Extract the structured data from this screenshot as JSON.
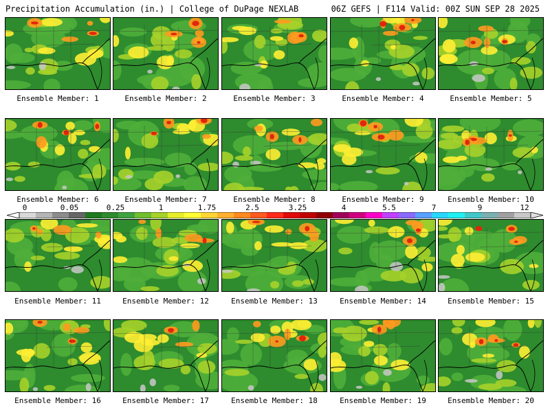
{
  "header": {
    "left": "Precipitation Accumulation (in.) | College of DuPage NEXLAB",
    "right": "06Z GEFS | F114 Valid: 00Z SUN SEP 28 2025"
  },
  "panels": [
    {
      "label": "Ensemble Member: 1"
    },
    {
      "label": "Ensemble Member: 2"
    },
    {
      "label": "Ensemble Member: 3"
    },
    {
      "label": "Ensemble Member: 4"
    },
    {
      "label": "Ensemble Member: 5"
    },
    {
      "label": "Ensemble Member: 6"
    },
    {
      "label": "Ensemble Member: 7"
    },
    {
      "label": "Ensemble Member: 8"
    },
    {
      "label": "Ensemble Member: 9"
    },
    {
      "label": "Ensemble Member: 10"
    },
    {
      "label": "Ensemble Member: 11"
    },
    {
      "label": "Ensemble Member: 12"
    },
    {
      "label": "Ensemble Member: 13"
    },
    {
      "label": "Ensemble Member: 14"
    },
    {
      "label": "Ensemble Member: 15"
    },
    {
      "label": "Ensemble Member: 16"
    },
    {
      "label": "Ensemble Member: 17"
    },
    {
      "label": "Ensemble Member: 18"
    },
    {
      "label": "Ensemble Member: 19"
    },
    {
      "label": "Ensemble Member: 20"
    }
  ],
  "colorbar": {
    "ticks": [
      "0",
      "0.05",
      "0.25",
      "1",
      "1.75",
      "2.5",
      "3.25",
      "4",
      "5.5",
      "7",
      "9",
      "12"
    ],
    "colors": [
      "#d9d9d9",
      "#b5b5b5",
      "#8c8c8c",
      "#666666",
      "#1f7a1f",
      "#2e8b2e",
      "#3fa33f",
      "#6fbf2f",
      "#a6d22a",
      "#e6ee2a",
      "#ffff33",
      "#ffd633",
      "#ffb02e",
      "#ff8a1f",
      "#ff5a1f",
      "#ff2a1a",
      "#e00a0a",
      "#c00000",
      "#900000",
      "#a0005a",
      "#d0007f",
      "#ff00c8",
      "#c040ff",
      "#8a6aff",
      "#5aa0ff",
      "#28d7ff",
      "#20f0f0",
      "#40c8c8",
      "#7ab0b0",
      "#a0a0a0",
      "#c8c8c8"
    ]
  }
}
